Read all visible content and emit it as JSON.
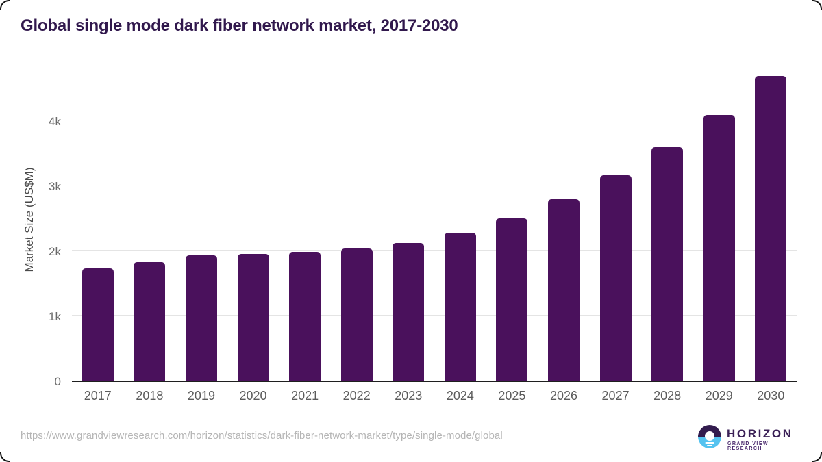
{
  "title": "Global single mode dark fiber network market, 2017-2030",
  "chart_data": {
    "type": "bar",
    "title": "Global single mode dark fiber network market, 2017-2030",
    "categories": [
      "2017",
      "2018",
      "2019",
      "2020",
      "2021",
      "2022",
      "2023",
      "2024",
      "2025",
      "2026",
      "2027",
      "2028",
      "2029",
      "2030"
    ],
    "values": [
      1737,
      1832,
      1937,
      1958,
      1989,
      2042,
      2126,
      2284,
      2505,
      2800,
      3168,
      3611,
      4105,
      4705
    ],
    "series_name": "Market Size",
    "xlabel": "",
    "ylabel": "Market Size (US$M)",
    "ylim": [
      0,
      4950
    ],
    "yticks": [
      {
        "value": 0,
        "label": "0"
      },
      {
        "value": 1000,
        "label": "1k"
      },
      {
        "value": 2000,
        "label": "2k"
      },
      {
        "value": 3000,
        "label": "3k"
      },
      {
        "value": 4000,
        "label": "4k"
      }
    ],
    "grid": true,
    "legend": false,
    "bar_color": "#4a115c"
  },
  "colors": {
    "title_text": "#31184d",
    "bar": "#4a115c",
    "axis_line": "#1f1f1f",
    "gridline": "#e4e4e4",
    "tick_label": "#6a6a6a",
    "source_url": "#b5b5b5",
    "logo_purple": "#3b2157",
    "logo_blue": "#55c3f0"
  },
  "footer": {
    "source_url": "https://www.grandviewresearch.com/horizon/statistics/dark-fiber-network-market/type/single-mode/global",
    "logo": {
      "brand": "HORIZON",
      "subtitle": "GRAND VIEW RESEARCH"
    }
  }
}
